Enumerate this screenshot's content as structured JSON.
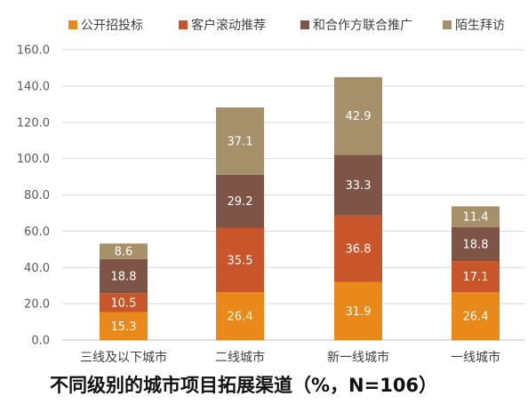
{
  "chart_data": {
    "type": "bar",
    "stacked": true,
    "title": "不同级别的城市项目拓展渠道（%，N=106）",
    "categories": [
      "三线及以下城市",
      "二线城市",
      "新一线城市",
      "一线城市"
    ],
    "series": [
      {
        "name": "公开招投标",
        "color": "#E8891A",
        "values": [
          15.3,
          26.4,
          31.9,
          26.4
        ]
      },
      {
        "name": "客户滚动推荐",
        "color": "#C9562A",
        "values": [
          10.5,
          35.5,
          36.8,
          17.1
        ]
      },
      {
        "name": "和合作方联合推广",
        "color": "#7E5446",
        "values": [
          18.8,
          29.2,
          33.3,
          18.8
        ]
      },
      {
        "name": "陌生拜访",
        "color": "#A6906A",
        "values": [
          8.6,
          37.1,
          42.9,
          11.4
        ]
      }
    ],
    "yticks": [
      "0.0",
      "20.0",
      "40.0",
      "60.0",
      "80.0",
      "100.0",
      "120.0",
      "140.0",
      "160.0"
    ],
    "ylim": [
      0,
      160
    ],
    "grid": true,
    "legend": "top"
  }
}
